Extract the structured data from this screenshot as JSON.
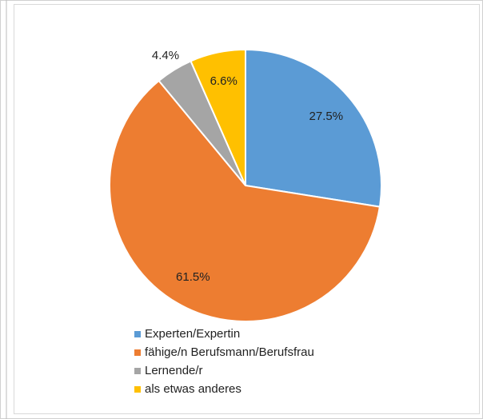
{
  "chart_data": {
    "type": "pie",
    "categories": [
      "Experten/Expertin",
      "fähige/n Berufsmann/Berufsfrau",
      "Lernende/r",
      "als etwas anderes"
    ],
    "values": [
      27.5,
      61.5,
      4.4,
      6.6
    ],
    "value_labels": [
      "27.5%",
      "61.5%",
      "4.4%",
      "6.6%"
    ],
    "colors": [
      "#5b9bd5",
      "#ed7d31",
      "#a5a5a5",
      "#ffc000"
    ]
  }
}
